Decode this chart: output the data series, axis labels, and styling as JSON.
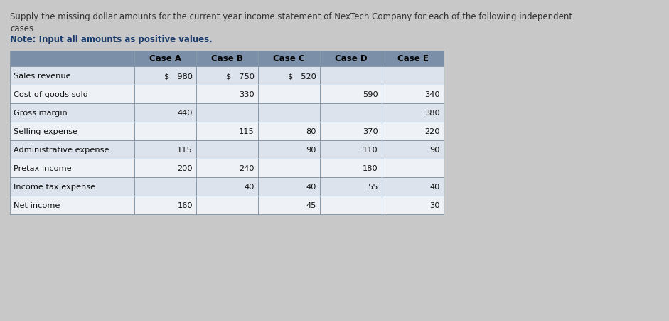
{
  "title_line1": "Supply the missing dollar amounts for the current year income statement of NexTech Company for each of the following independent",
  "title_line2": "cases.",
  "note": "Note: Input all amounts as positive values.",
  "headers": [
    "",
    "Case A",
    "Case B",
    "Case C",
    "Case D",
    "Case E"
  ],
  "rows": [
    [
      "Sales revenue",
      "$   980",
      "$   750",
      "$   520",
      "",
      ""
    ],
    [
      "Cost of goods sold",
      "",
      "330",
      "",
      "590",
      "340"
    ],
    [
      "Gross margin",
      "440",
      "",
      "",
      "",
      "380"
    ],
    [
      "Selling expense",
      "",
      "115",
      "80",
      "370",
      "220"
    ],
    [
      "Administrative expense",
      "115",
      "",
      "90",
      "110",
      "90"
    ],
    [
      "Pretax income",
      "200",
      "240",
      "",
      "180",
      ""
    ],
    [
      "Income tax expense",
      "",
      "40",
      "40",
      "55",
      "40"
    ],
    [
      "Net income",
      "160",
      "",
      "45",
      "",
      "30"
    ]
  ],
  "header_bg": "#7b8fa8",
  "row_bg_light": "#dce3ec",
  "row_bg_white": "#eef1f5",
  "fig_bg": "#c8c8c8",
  "title_fontsize": 8.5,
  "note_fontsize": 8.5,
  "cell_fontsize": 8.2,
  "header_fontsize": 8.5
}
